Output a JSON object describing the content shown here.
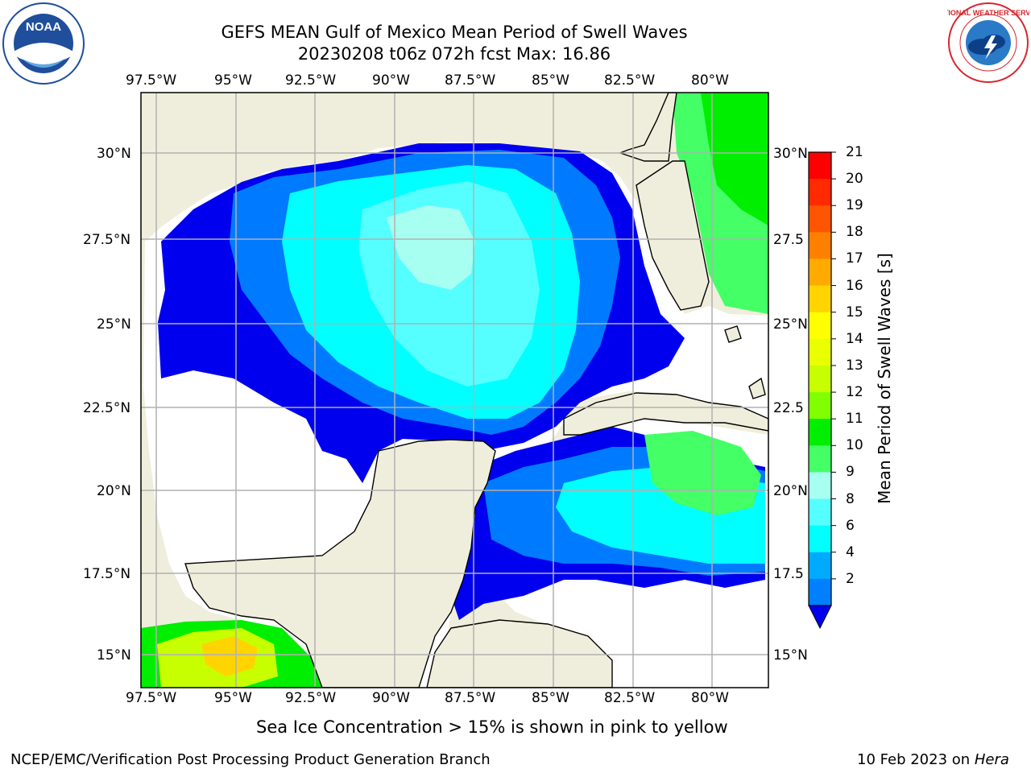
{
  "header": {
    "title_line1": "GEFS MEAN Gulf of Mexico Mean Period of Swell Waves",
    "title_line2": "20230208 t06z 072h fcst   Max: 16.86"
  },
  "logos": {
    "left": {
      "text": "NOAA",
      "ring_text": "NATIONAL OCEANIC AND ATMOSPHERIC ADMINISTRATION · U.S. DEPARTMENT OF COMMERCE",
      "color": "#1f4e9c"
    },
    "right": {
      "ring_text": "NATIONAL WEATHER SERVICE",
      "color": "#d8262e"
    }
  },
  "map": {
    "lon_ticks": [
      "97.5°W",
      "95°W",
      "92.5°W",
      "90°W",
      "87.5°W",
      "85°W",
      "82.5°W",
      "80°W"
    ],
    "lat_ticks_left": [
      "30°N",
      "27.5°N",
      "25°N",
      "22.5°N",
      "20°N",
      "17.5°N",
      "15°N"
    ],
    "lat_ticks_right": [
      "30°N",
      "27.5",
      "25°N",
      "22.5",
      "20°N",
      "17.5",
      "15°N"
    ],
    "land_color": "#efeedc",
    "grid_color": "#b0b0b0"
  },
  "colorbar": {
    "label": "Mean Period of Swell Waves [s]",
    "ticks": [
      "21",
      "20",
      "19",
      "18",
      "17",
      "16",
      "15",
      "14",
      "13",
      "12",
      "11",
      "10",
      "9",
      "8",
      "6",
      "4",
      "2"
    ],
    "colors": [
      "#ff0000",
      "#ff2a00",
      "#ff5500",
      "#ff8000",
      "#ffaa00",
      "#ffd400",
      "#ffff00",
      "#eaff00",
      "#c8ff00",
      "#80ff00",
      "#00ee00",
      "#44ff66",
      "#a6fff0",
      "#55ffff",
      "#00ffff",
      "#00aaff",
      "#0080ff"
    ],
    "extend_color": "#0000ee"
  },
  "footer": {
    "ice_note": "Sea Ice Concentration > 15% is shown in pink to yellow",
    "credit": "NCEP/EMC/Verification Post Processing Product Generation Branch",
    "date": "10 Feb 2023 on ",
    "machine": "Hera"
  }
}
